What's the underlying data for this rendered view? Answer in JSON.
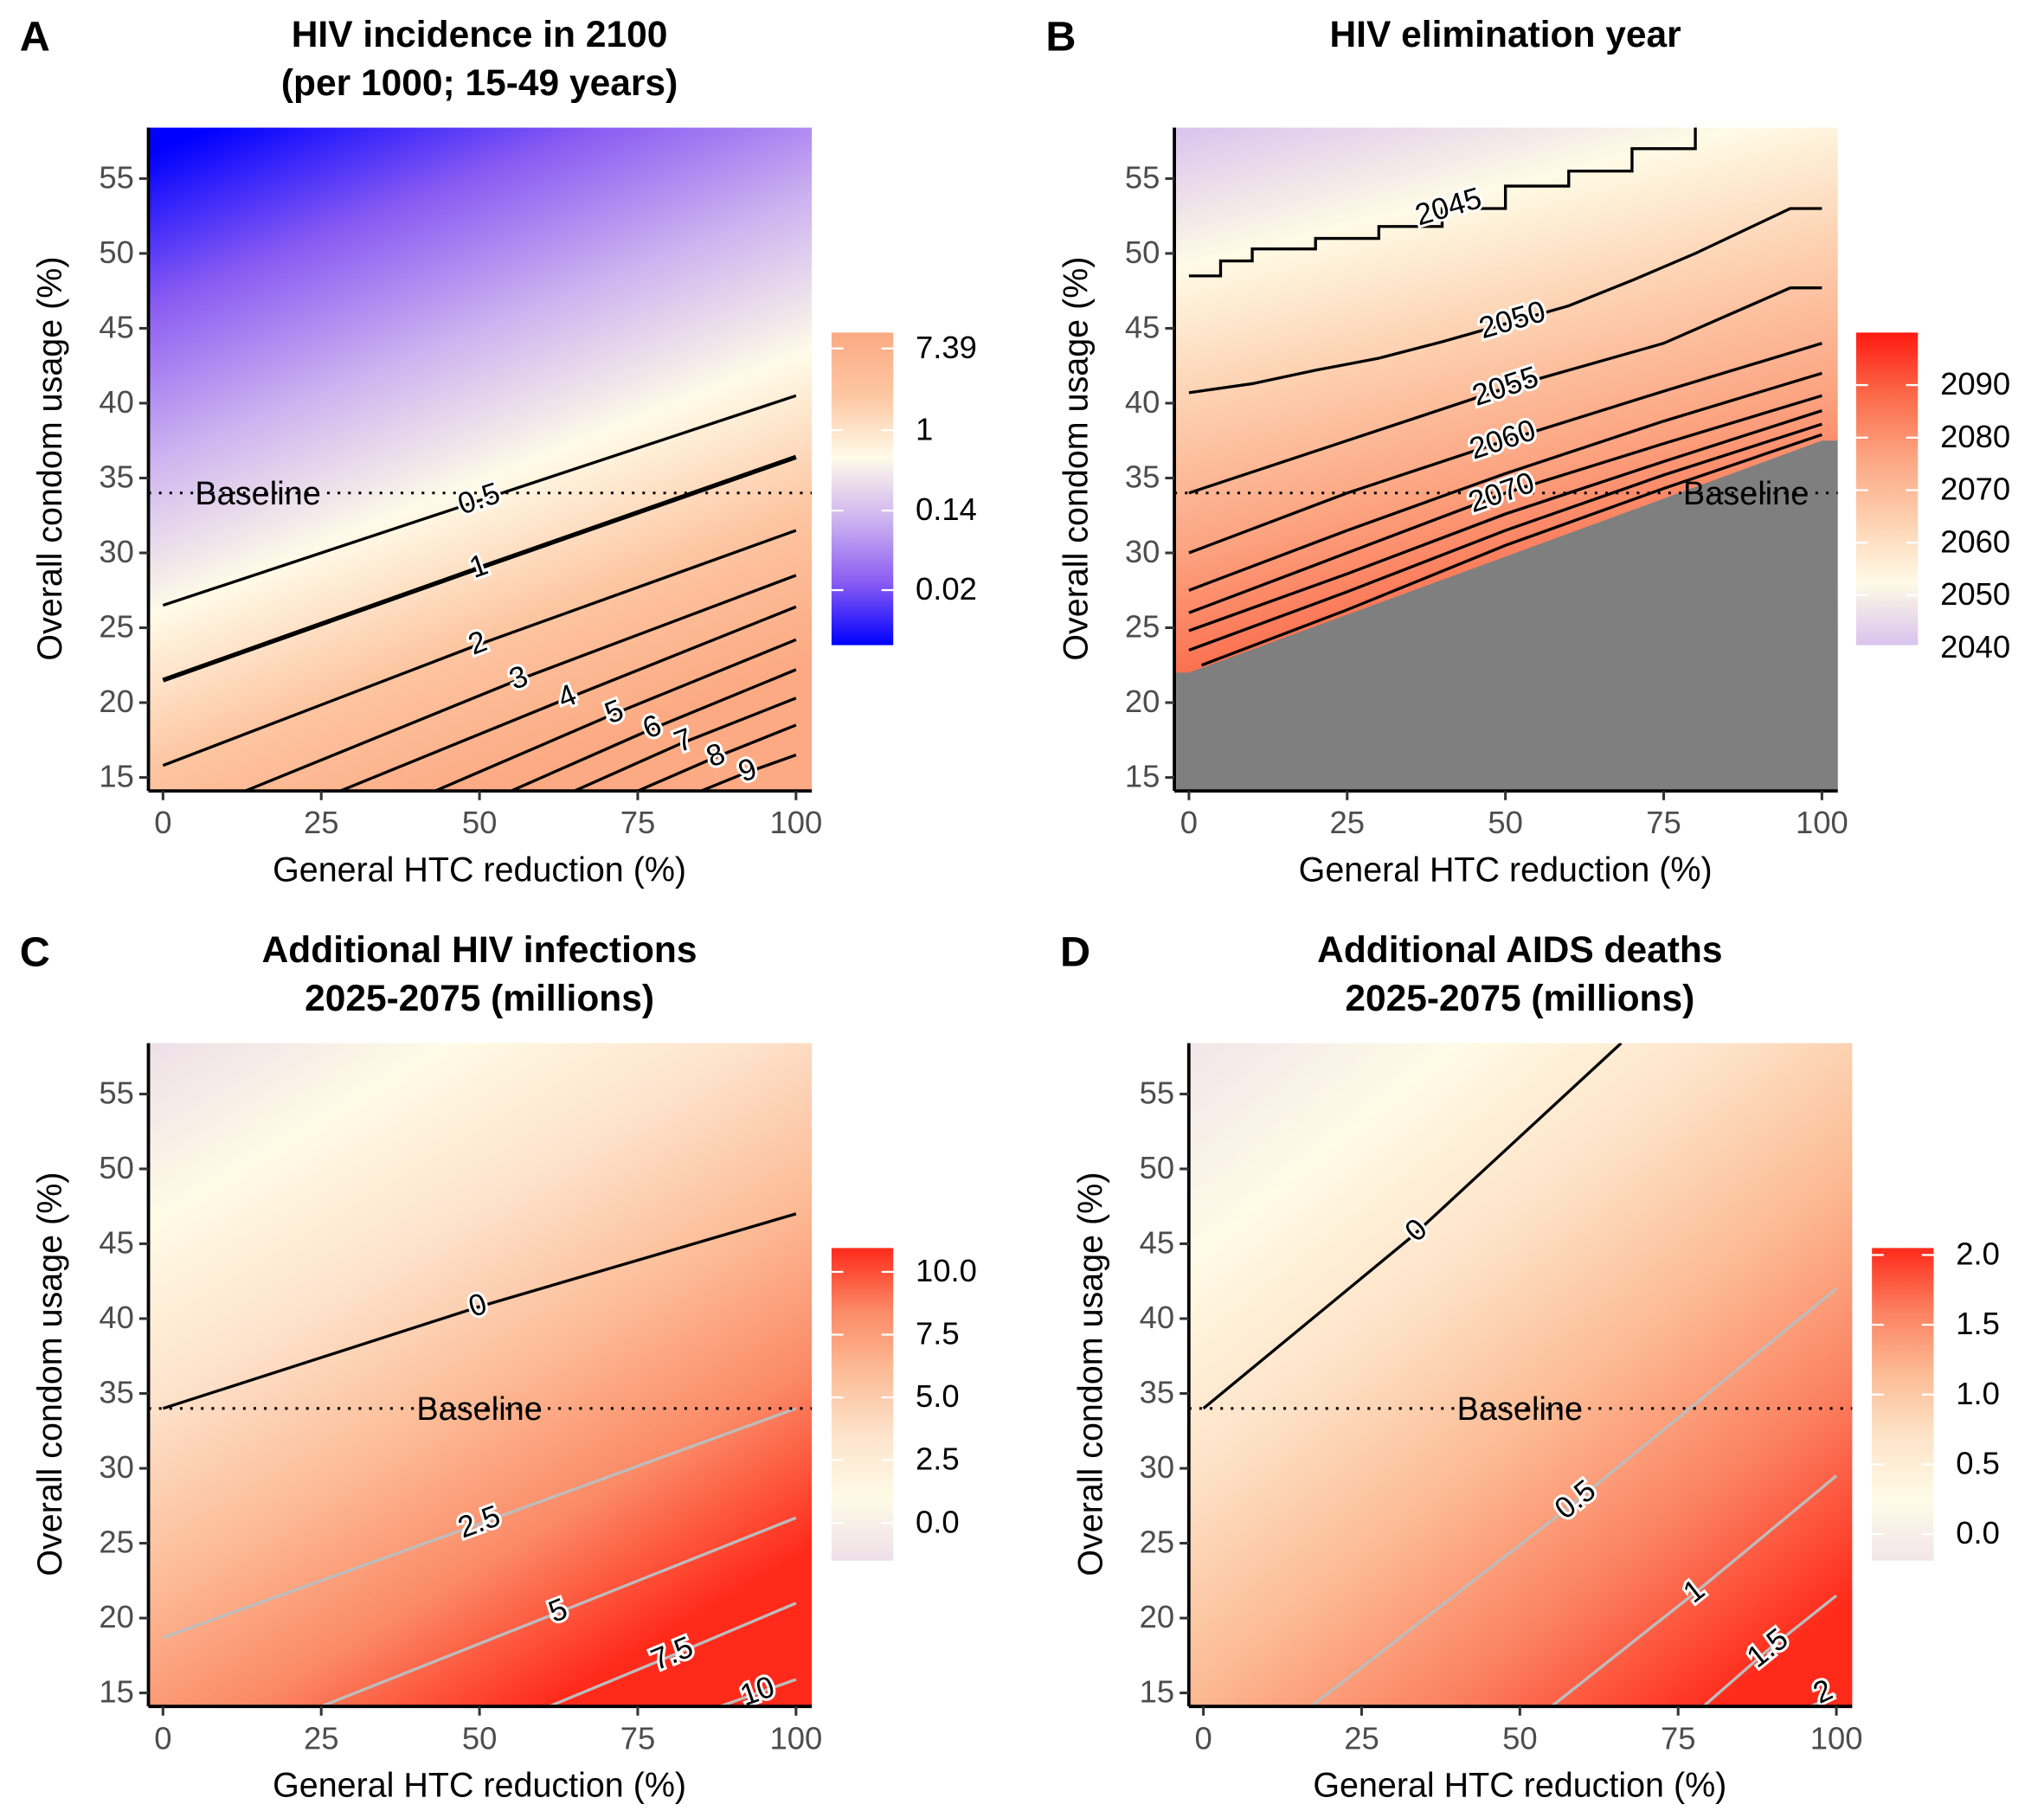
{
  "chart_data": [
    {
      "type": "contour",
      "panel": "A",
      "title": [
        "HIV incidence in 2100",
        "(per 1000; 15-49 years)"
      ],
      "xlabel": "General HTC reduction (%)",
      "ylabel": "Overall condom usage (%)",
      "xlim": [
        -2.3,
        102.5
      ],
      "ylim": [
        14.1,
        58.4
      ],
      "xticks": [
        0,
        25,
        50,
        75,
        100
      ],
      "yticks": [
        15,
        20,
        25,
        30,
        35,
        40,
        45,
        50,
        55
      ],
      "baseline": {
        "y": 34,
        "label": "Baseline"
      },
      "colorbar": {
        "log": true,
        "lim": [
          0.0052,
          10.9
        ],
        "ticks": [
          7.39,
          1,
          0.14,
          0.02
        ],
        "colors": [
          "#0000ff",
          "#8a5cf2",
          "#cdb3f0",
          "#fffbe8",
          "#fdc6a2",
          "#fcaa83"
        ]
      },
      "contours": [
        {
          "level": 0.5,
          "color": "#000000",
          "x": [
            0,
            50,
            100
          ],
          "y": [
            26.5,
            33.5,
            40.5
          ]
        },
        {
          "level": 1,
          "color": "#000000",
          "x": [
            0,
            50,
            100
          ],
          "y": [
            21.5,
            29,
            36.4
          ]
        },
        {
          "level": 2,
          "color": "#000000",
          "x": [
            0,
            50,
            100
          ],
          "y": [
            15.8,
            23.9,
            31.5
          ]
        },
        {
          "level": 3,
          "color": "#000000",
          "x": [
            13,
            56,
            100
          ],
          "y": [
            14.1,
            21.5,
            28.5
          ]
        },
        {
          "level": 4,
          "color": "#000000",
          "x": [
            28,
            64,
            100
          ],
          "y": [
            14.1,
            20.3,
            26.4
          ]
        },
        {
          "level": 5,
          "color": "#000000",
          "x": [
            43,
            71,
            100
          ],
          "y": [
            14.1,
            19.2,
            24.2
          ]
        },
        {
          "level": 6,
          "color": "#000000",
          "x": [
            55,
            77,
            100
          ],
          "y": [
            14.1,
            18.2,
            22.2
          ]
        },
        {
          "level": 7,
          "color": "#000000",
          "x": [
            65,
            82,
            100
          ],
          "y": [
            14.1,
            17.3,
            20.3
          ]
        },
        {
          "level": 8,
          "color": "#000000",
          "x": [
            75,
            87,
            100
          ],
          "y": [
            14.1,
            16.3,
            18.5
          ]
        },
        {
          "level": 9,
          "color": "#000000",
          "x": [
            85,
            92,
            100
          ],
          "y": [
            14.1,
            15.3,
            16.5
          ]
        }
      ]
    },
    {
      "type": "contour",
      "panel": "B",
      "title": [
        "HIV elimination year"
      ],
      "xlabel": "General HTC reduction (%)",
      "ylabel": "Overall condom usage (%)",
      "xlim": [
        -2.3,
        102.5
      ],
      "ylim": [
        14.1,
        58.4
      ],
      "xticks": [
        0,
        25,
        50,
        75,
        100
      ],
      "yticks": [
        15,
        20,
        25,
        30,
        35,
        40,
        45,
        50,
        55
      ],
      "baseline": {
        "y": 34,
        "label": "Baseline"
      },
      "na_color": "#7f7f7f",
      "na_boundary": {
        "x": [
          0,
          100
        ],
        "y": [
          22,
          37.5
        ]
      },
      "colorbar": {
        "log": false,
        "lim": [
          2040.5,
          2100
        ],
        "ticks": [
          2090,
          2080,
          2070,
          2060,
          2050,
          2040
        ],
        "colors": [
          "#d9c3ee",
          "#fffbe6",
          "#fdd0b0",
          "#fca582",
          "#fb6a4a",
          "#ff1a10"
        ]
      },
      "contours": [
        {
          "level": 2045,
          "labeled": true,
          "color": "#000000",
          "x": [
            0,
            5,
            5,
            10,
            10,
            20,
            20,
            30,
            30,
            40,
            40,
            50,
            50,
            60,
            60,
            70,
            70,
            80,
            80
          ],
          "y": [
            48.5,
            48.5,
            49.5,
            49.5,
            50.3,
            50.3,
            51,
            51,
            51.8,
            51.8,
            53,
            53,
            54.5,
            54.5,
            55.5,
            55.5,
            57,
            57,
            58.4
          ]
        },
        {
          "level": 2050,
          "labeled": true,
          "color": "#000000",
          "x": [
            0,
            10,
            20,
            30,
            40,
            50,
            60,
            70,
            80,
            95,
            100
          ],
          "y": [
            40.7,
            41.3,
            42.2,
            43,
            44.1,
            45.3,
            46.5,
            48.2,
            50,
            53,
            53
          ]
        },
        {
          "level": 2055,
          "labeled": true,
          "color": "#000000",
          "x": [
            0,
            25,
            50,
            75,
            95,
            100
          ],
          "y": [
            34,
            37.5,
            41,
            44,
            47.7,
            47.7
          ]
        },
        {
          "level": 2060,
          "labeled": true,
          "color": "#000000",
          "x": [
            0,
            25,
            50,
            75,
            100
          ],
          "y": [
            30,
            34,
            37.5,
            40.8,
            44
          ]
        },
        {
          "level": 2065,
          "labeled": false,
          "color": "#000000",
          "x": [
            0,
            25,
            50,
            75,
            100
          ],
          "y": [
            27.5,
            31.5,
            35.3,
            38.8,
            42
          ]
        },
        {
          "level": 2070,
          "labeled": true,
          "color": "#000000",
          "x": [
            0,
            25,
            50,
            75,
            100
          ],
          "y": [
            26,
            30,
            34,
            37.3,
            40.5
          ]
        },
        {
          "level": 2075,
          "labeled": false,
          "color": "#000000",
          "x": [
            0,
            25,
            50,
            75,
            100
          ],
          "y": [
            24.8,
            28.6,
            32.6,
            36.1,
            39.5
          ]
        },
        {
          "level": 2080,
          "labeled": false,
          "color": "#000000",
          "x": [
            0,
            25,
            50,
            75,
            100
          ],
          "y": [
            23.5,
            27.4,
            31.5,
            35.2,
            38.6
          ]
        },
        {
          "level": 2085,
          "labeled": false,
          "color": "#000000",
          "x": [
            2,
            25,
            50,
            75,
            100
          ],
          "y": [
            22.5,
            26.2,
            30.5,
            34.3,
            37.9
          ]
        }
      ]
    },
    {
      "type": "contour",
      "panel": "C",
      "title": [
        "Additional HIV infections",
        "2025-2075 (millions)"
      ],
      "xlabel": "General HTC reduction (%)",
      "ylabel": "Overall condom usage (%)",
      "xlim": [
        -2.3,
        102.5
      ],
      "ylim": [
        14.1,
        58.4
      ],
      "xticks": [
        0,
        25,
        50,
        75,
        100
      ],
      "yticks": [
        15,
        20,
        25,
        30,
        35,
        40,
        45,
        50,
        55
      ],
      "baseline": {
        "y": 34,
        "label": "Baseline"
      },
      "colorbar": {
        "log": false,
        "lim": [
          -1.5,
          10.95
        ],
        "ticks": [
          {
            "value": 10,
            "label": "10.0"
          },
          7.5,
          {
            "value": 5,
            "label": "5.0"
          },
          2.5,
          {
            "value": 0,
            "label": "0.0"
          }
        ],
        "colors": [
          "#eddfe8",
          "#fffbe6",
          "#fde3cc",
          "#fcbd98",
          "#fb8a66",
          "#ff2a1a"
        ]
      },
      "contours": [
        {
          "level": 0,
          "color": "#000000",
          "x": [
            0,
            50,
            100
          ],
          "y": [
            34,
            40.8,
            47
          ]
        },
        {
          "level": 2.5,
          "color": "#bdbdbd",
          "x": [
            0,
            50,
            100
          ],
          "y": [
            18.7,
            26.3,
            34
          ]
        },
        {
          "level": 5,
          "color": "#bdbdbd",
          "x": [
            25,
            62,
            100
          ],
          "y": [
            14.1,
            20.3,
            26.7
          ]
        },
        {
          "level": 7.5,
          "color": "#bdbdbd",
          "x": [
            61,
            81,
            100
          ],
          "y": [
            14.1,
            17.6,
            21
          ]
        },
        {
          "level": 10,
          "color": "#bdbdbd",
          "x": [
            88,
            94,
            100
          ],
          "y": [
            14.1,
            15,
            15.9
          ]
        }
      ]
    },
    {
      "type": "contour",
      "panel": "D",
      "title": [
        "Additional AIDS deaths",
        "2025-2075 (millions)"
      ],
      "xlabel": "General HTC reduction (%)",
      "ylabel": "Overall condom usage (%)",
      "xlim": [
        -2.3,
        102.5
      ],
      "ylim": [
        14.1,
        58.4
      ],
      "xticks": [
        0,
        25,
        50,
        75,
        100
      ],
      "yticks": [
        15,
        20,
        25,
        30,
        35,
        40,
        45,
        50,
        55
      ],
      "baseline": {
        "y": 34,
        "label": "Baseline"
      },
      "colorbar": {
        "log": false,
        "lim": [
          -0.19,
          2.05
        ],
        "ticks": [
          {
            "value": 2,
            "label": "2.0"
          },
          1.5,
          {
            "value": 1,
            "label": "1.0"
          },
          0.5,
          {
            "value": 0,
            "label": "0.0"
          }
        ],
        "colors": [
          "#f1e6ea",
          "#fffbe6",
          "#fde3c8",
          "#fcbb94",
          "#fb8060",
          "#ff2a1a"
        ]
      },
      "contours": [
        {
          "level": 0,
          "color": "#000000",
          "x": [
            0,
            33,
            66
          ],
          "y": [
            34,
            45.5,
            58.4
          ]
        },
        {
          "level": 0.5,
          "color": "#bdbdbd",
          "x": [
            17,
            58,
            100
          ],
          "y": [
            14.1,
            27.5,
            42
          ]
        },
        {
          "level": 1,
          "color": "#bdbdbd",
          "x": [
            55,
            78,
            100
          ],
          "y": [
            14.1,
            21.8,
            29.5
          ]
        },
        {
          "level": 1.5,
          "color": "#bdbdbd",
          "x": [
            79,
            89,
            100
          ],
          "y": [
            14.1,
            17.8,
            21.5
          ]
        },
        {
          "level": 2,
          "color": "#bdbdbd",
          "x": [
            96,
            98,
            100
          ],
          "y": [
            14.1,
            14.5,
            14.9
          ]
        }
      ]
    }
  ]
}
